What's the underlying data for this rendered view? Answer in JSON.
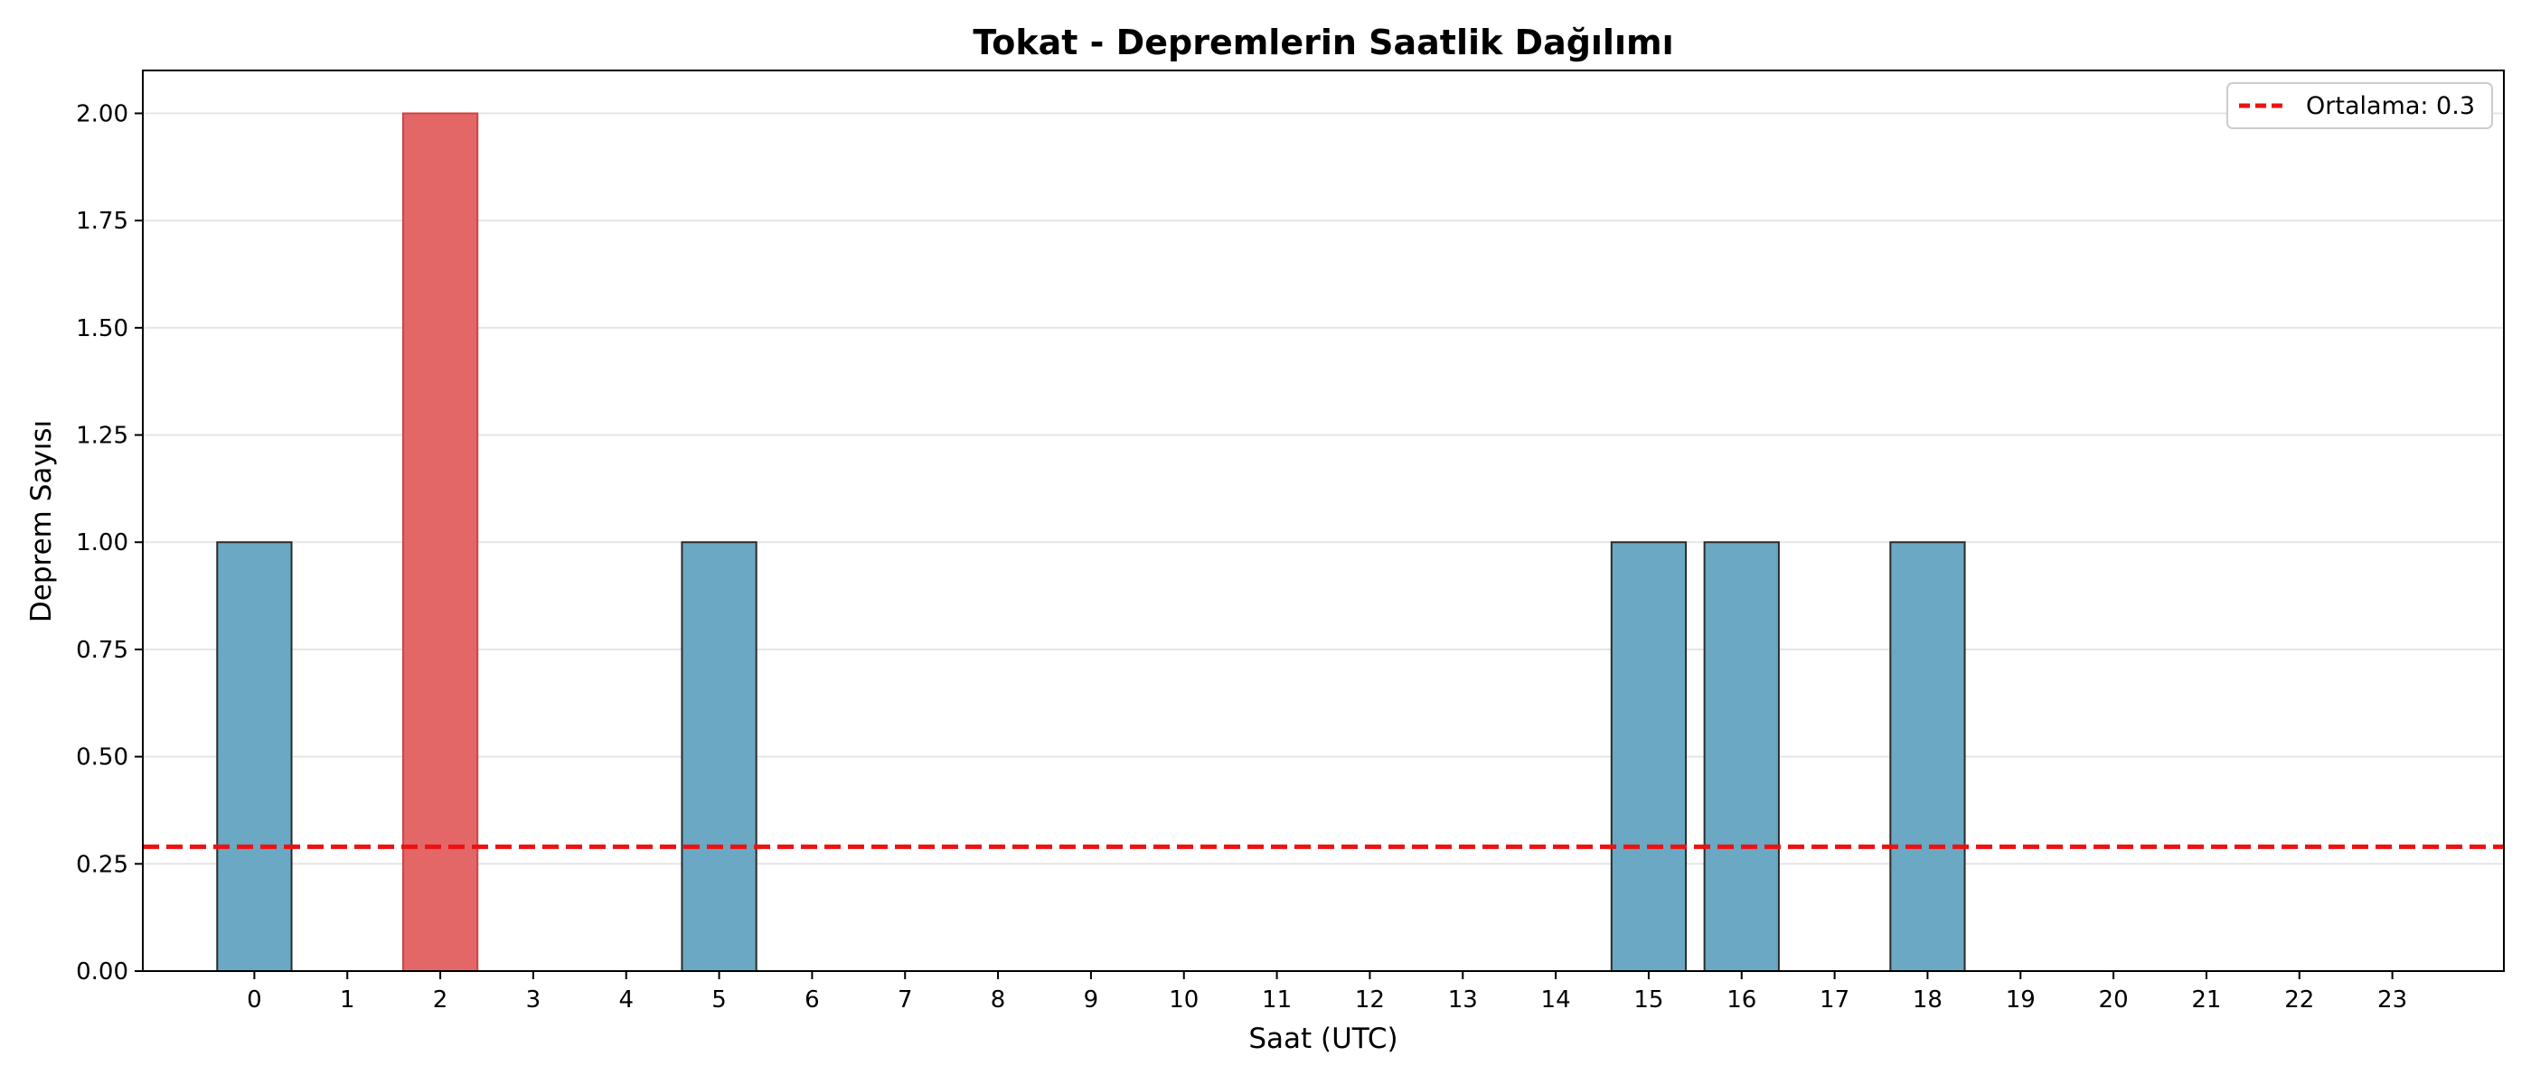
{
  "chart_data": {
    "type": "bar",
    "title": "Tokat - Depremlerin Saatlik Dağılımı",
    "xlabel": "Saat (UTC)",
    "ylabel": "Deprem Sayısı",
    "categories": [
      "0",
      "1",
      "2",
      "3",
      "4",
      "5",
      "6",
      "7",
      "8",
      "9",
      "10",
      "11",
      "12",
      "13",
      "14",
      "15",
      "16",
      "17",
      "18",
      "19",
      "20",
      "21",
      "22",
      "23"
    ],
    "values": [
      1,
      0,
      2,
      0,
      0,
      1,
      0,
      0,
      0,
      0,
      0,
      0,
      0,
      0,
      0,
      1,
      1,
      0,
      1,
      0,
      0,
      0,
      0,
      0
    ],
    "ylim": [
      0,
      2.1
    ],
    "yticks": [
      "0.00",
      "0.25",
      "0.50",
      "0.75",
      "1.00",
      "1.25",
      "1.50",
      "1.75",
      "2.00"
    ],
    "highlight_index": 2,
    "mean": 0.29,
    "legend": {
      "label": "Ortalama: 0.3",
      "location": "upper right"
    },
    "grid": "y",
    "colors": {
      "bar": "#6aa8c3",
      "bar_edge": "#2b2b2b",
      "highlight": "#e36767",
      "highlight_edge": "#cc4444",
      "mean_line": "#ee1111",
      "grid": "#e5e5e5"
    }
  }
}
